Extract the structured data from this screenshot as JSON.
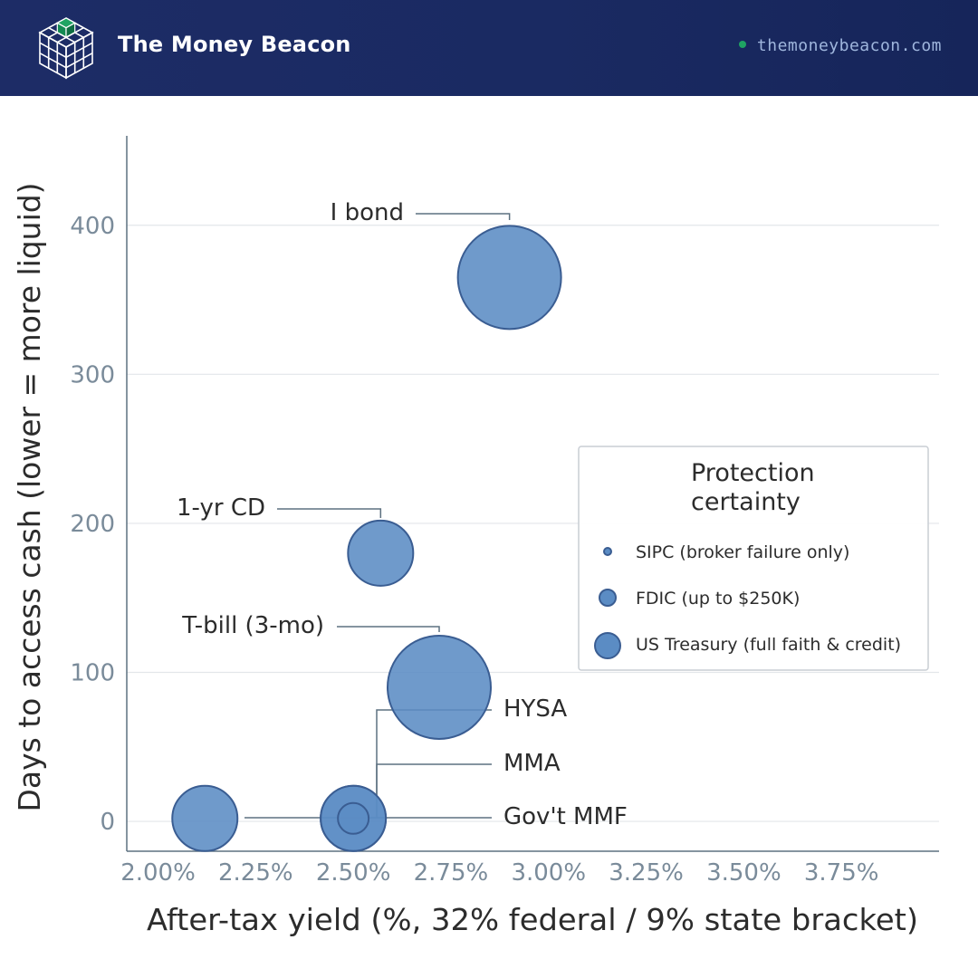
{
  "header": {
    "brand": "The Money Beacon",
    "site": "themoneybeacon.com",
    "logo_icon": "cube-grid-icon",
    "accent_dot_color": "#1fa463"
  },
  "chart_data": {
    "type": "scatter",
    "subtype": "bubble",
    "xlabel": "After-tax yield (%, 32% federal / 9% state bracket)",
    "ylabel": "Days to access cash (lower = more liquid)",
    "xlim": [
      1.92,
      4.0
    ],
    "ylim": [
      -20,
      460
    ],
    "x_ticks": [
      2.0,
      2.25,
      2.5,
      2.75,
      3.0,
      3.25,
      3.5,
      3.75
    ],
    "x_tick_labels": [
      "2.00%",
      "2.25%",
      "2.50%",
      "2.75%",
      "3.00%",
      "3.25%",
      "3.50%",
      "3.75%"
    ],
    "y_ticks": [
      0,
      100,
      200,
      300,
      400
    ],
    "y_tick_labels": [
      "0",
      "100",
      "200",
      "300",
      "400"
    ],
    "grid": "horizontal",
    "bubble_color": "#5b8cc4",
    "bubble_stroke": "#3a5d92",
    "points": [
      {
        "label": "I bond",
        "x": 2.9,
        "y": 365,
        "size": 3
      },
      {
        "label": "1-yr CD",
        "x": 2.57,
        "y": 180,
        "size": 2
      },
      {
        "label": "T-bill (3-mo)",
        "x": 2.72,
        "y": 90,
        "size": 3
      },
      {
        "label": "HYSA",
        "x": 2.5,
        "y": 2,
        "size": 2
      },
      {
        "label": "MMA",
        "x": 2.5,
        "y": 2,
        "size": 2
      },
      {
        "label": "Gov't MMF",
        "x": 2.5,
        "y": 2,
        "size": 1
      },
      {
        "label": "",
        "x": 2.12,
        "y": 2,
        "size": 2
      }
    ],
    "legend": {
      "title": [
        "Protection",
        "certainty"
      ],
      "placement": "right",
      "items": [
        {
          "label": "SIPC (broker failure only)",
          "size": 1
        },
        {
          "label": "FDIC (up to $250K)",
          "size": 2
        },
        {
          "label": "US Treasury (full faith & credit)",
          "size": 3
        }
      ]
    }
  }
}
